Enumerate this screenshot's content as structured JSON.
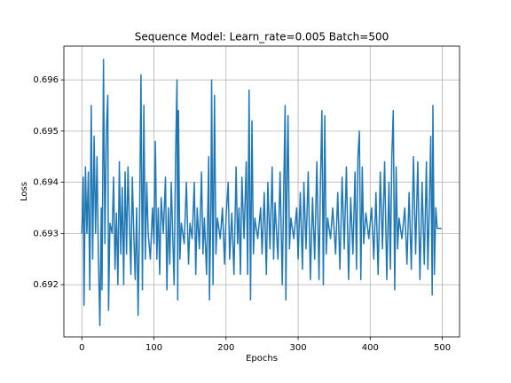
{
  "chart_data": {
    "type": "line",
    "title": "Sequence Model: Learn_rate=0.005 Batch=500",
    "x_label": "Epochs",
    "y_label": "Loss",
    "x": [
      0,
      2,
      3,
      5,
      7,
      9,
      11,
      13,
      15,
      17,
      19,
      21,
      23,
      25,
      27,
      28,
      30,
      32,
      34,
      36,
      37,
      39,
      42,
      44,
      46,
      48,
      50,
      52,
      54,
      56,
      58,
      60,
      62,
      64,
      66,
      68,
      70,
      72,
      74,
      76,
      78,
      80,
      82,
      84,
      86,
      88,
      90,
      92,
      95,
      98,
      100,
      102,
      104,
      106,
      108,
      110,
      113,
      116,
      118,
      120,
      122,
      124,
      126,
      128,
      130,
      132,
      133,
      134,
      136,
      138,
      142,
      145,
      148,
      150,
      153,
      156,
      158,
      160,
      163,
      166,
      168,
      170,
      173,
      176,
      177,
      179,
      180,
      182,
      184,
      186,
      188,
      192,
      195,
      198,
      200,
      203,
      205,
      208,
      211,
      214,
      216,
      218,
      220,
      222,
      225,
      228,
      230,
      232,
      234,
      236,
      238,
      240,
      244,
      248,
      250,
      253,
      256,
      258,
      261,
      264,
      266,
      268,
      272,
      275,
      278,
      280,
      282,
      283,
      285,
      286,
      288,
      290,
      294,
      298,
      300,
      303,
      306,
      308,
      311,
      314,
      317,
      320,
      323,
      326,
      329,
      331,
      333,
      335,
      337,
      339,
      341,
      345,
      348,
      352,
      355,
      358,
      361,
      364,
      367,
      370,
      373,
      376,
      379,
      381,
      383,
      385,
      387,
      389,
      391,
      394,
      398,
      402,
      405,
      408,
      411,
      414,
      417,
      420,
      423,
      426,
      428,
      430,
      432,
      434,
      436,
      438,
      440,
      444,
      448,
      451,
      454,
      457,
      460,
      463,
      466,
      469,
      472,
      475,
      478,
      480,
      482,
      484,
      486,
      487,
      489,
      491,
      493,
      496,
      499
    ],
    "series": [
      {
        "name": "Loss",
        "color": "#1f77b4",
        "values": [
          0.693,
          0.6941,
          0.6916,
          0.6943,
          0.693,
          0.6942,
          0.6919,
          0.6955,
          0.6925,
          0.6949,
          0.693,
          0.6945,
          0.6925,
          0.6912,
          0.6935,
          0.6919,
          0.6964,
          0.6928,
          0.695,
          0.6957,
          0.6915,
          0.6932,
          0.693,
          0.6941,
          0.6923,
          0.6934,
          0.692,
          0.6944,
          0.6926,
          0.6939,
          0.692,
          0.6942,
          0.6926,
          0.6943,
          0.6932,
          0.6922,
          0.6941,
          0.693,
          0.6921,
          0.6935,
          0.6914,
          0.6932,
          0.6961,
          0.6919,
          0.6955,
          0.6925,
          0.694,
          0.693,
          0.6925,
          0.6935,
          0.6928,
          0.6948,
          0.6925,
          0.6935,
          0.6922,
          0.6937,
          0.693,
          0.6941,
          0.6919,
          0.6935,
          0.6924,
          0.694,
          0.693,
          0.692,
          0.6945,
          0.696,
          0.6917,
          0.6954,
          0.6925,
          0.6932,
          0.6928,
          0.694,
          0.6924,
          0.6932,
          0.6929,
          0.694,
          0.6922,
          0.6935,
          0.6927,
          0.6942,
          0.6926,
          0.6933,
          0.6922,
          0.6945,
          0.6917,
          0.6935,
          0.696,
          0.692,
          0.6957,
          0.6926,
          0.6933,
          0.6929,
          0.6935,
          0.6924,
          0.6933,
          0.694,
          0.6925,
          0.6934,
          0.6922,
          0.6943,
          0.6928,
          0.6935,
          0.6922,
          0.6941,
          0.6929,
          0.6944,
          0.6922,
          0.6958,
          0.6917,
          0.6952,
          0.6926,
          0.6933,
          0.6929,
          0.6935,
          0.6926,
          0.6938,
          0.6922,
          0.694,
          0.6927,
          0.6943,
          0.6925,
          0.6936,
          0.6925,
          0.6942,
          0.692,
          0.6938,
          0.6955,
          0.6917,
          0.6945,
          0.6953,
          0.6927,
          0.6933,
          0.6929,
          0.6935,
          0.6925,
          0.6938,
          0.6923,
          0.694,
          0.6927,
          0.6942,
          0.6921,
          0.6937,
          0.6925,
          0.6944,
          0.6921,
          0.694,
          0.6954,
          0.692,
          0.6953,
          0.6926,
          0.6933,
          0.6929,
          0.6935,
          0.6926,
          0.6938,
          0.6923,
          0.6941,
          0.6927,
          0.6943,
          0.6921,
          0.6937,
          0.6926,
          0.6942,
          0.6923,
          0.6945,
          0.695,
          0.6921,
          0.6943,
          0.6928,
          0.6934,
          0.6929,
          0.6935,
          0.6925,
          0.6938,
          0.6922,
          0.6942,
          0.6927,
          0.6944,
          0.6921,
          0.694,
          0.6923,
          0.6945,
          0.6954,
          0.6919,
          0.6943,
          0.6927,
          0.6933,
          0.6929,
          0.6935,
          0.6924,
          0.6938,
          0.6923,
          0.6945,
          0.6926,
          0.6944,
          0.6921,
          0.694,
          0.6924,
          0.6944,
          0.6923,
          0.6935,
          0.6949,
          0.6918,
          0.6955,
          0.6922,
          0.6935,
          0.6931,
          0.6931,
          0.6931
        ]
      }
    ],
    "xlim": [
      -24.95,
      523.95
    ],
    "xticks": [
      0,
      100,
      200,
      300,
      400,
      500
    ],
    "ylim": [
      0.69098,
      0.69666
    ],
    "yticks": [
      0.692,
      0.693,
      0.694,
      0.695,
      0.696
    ],
    "grid": true
  }
}
